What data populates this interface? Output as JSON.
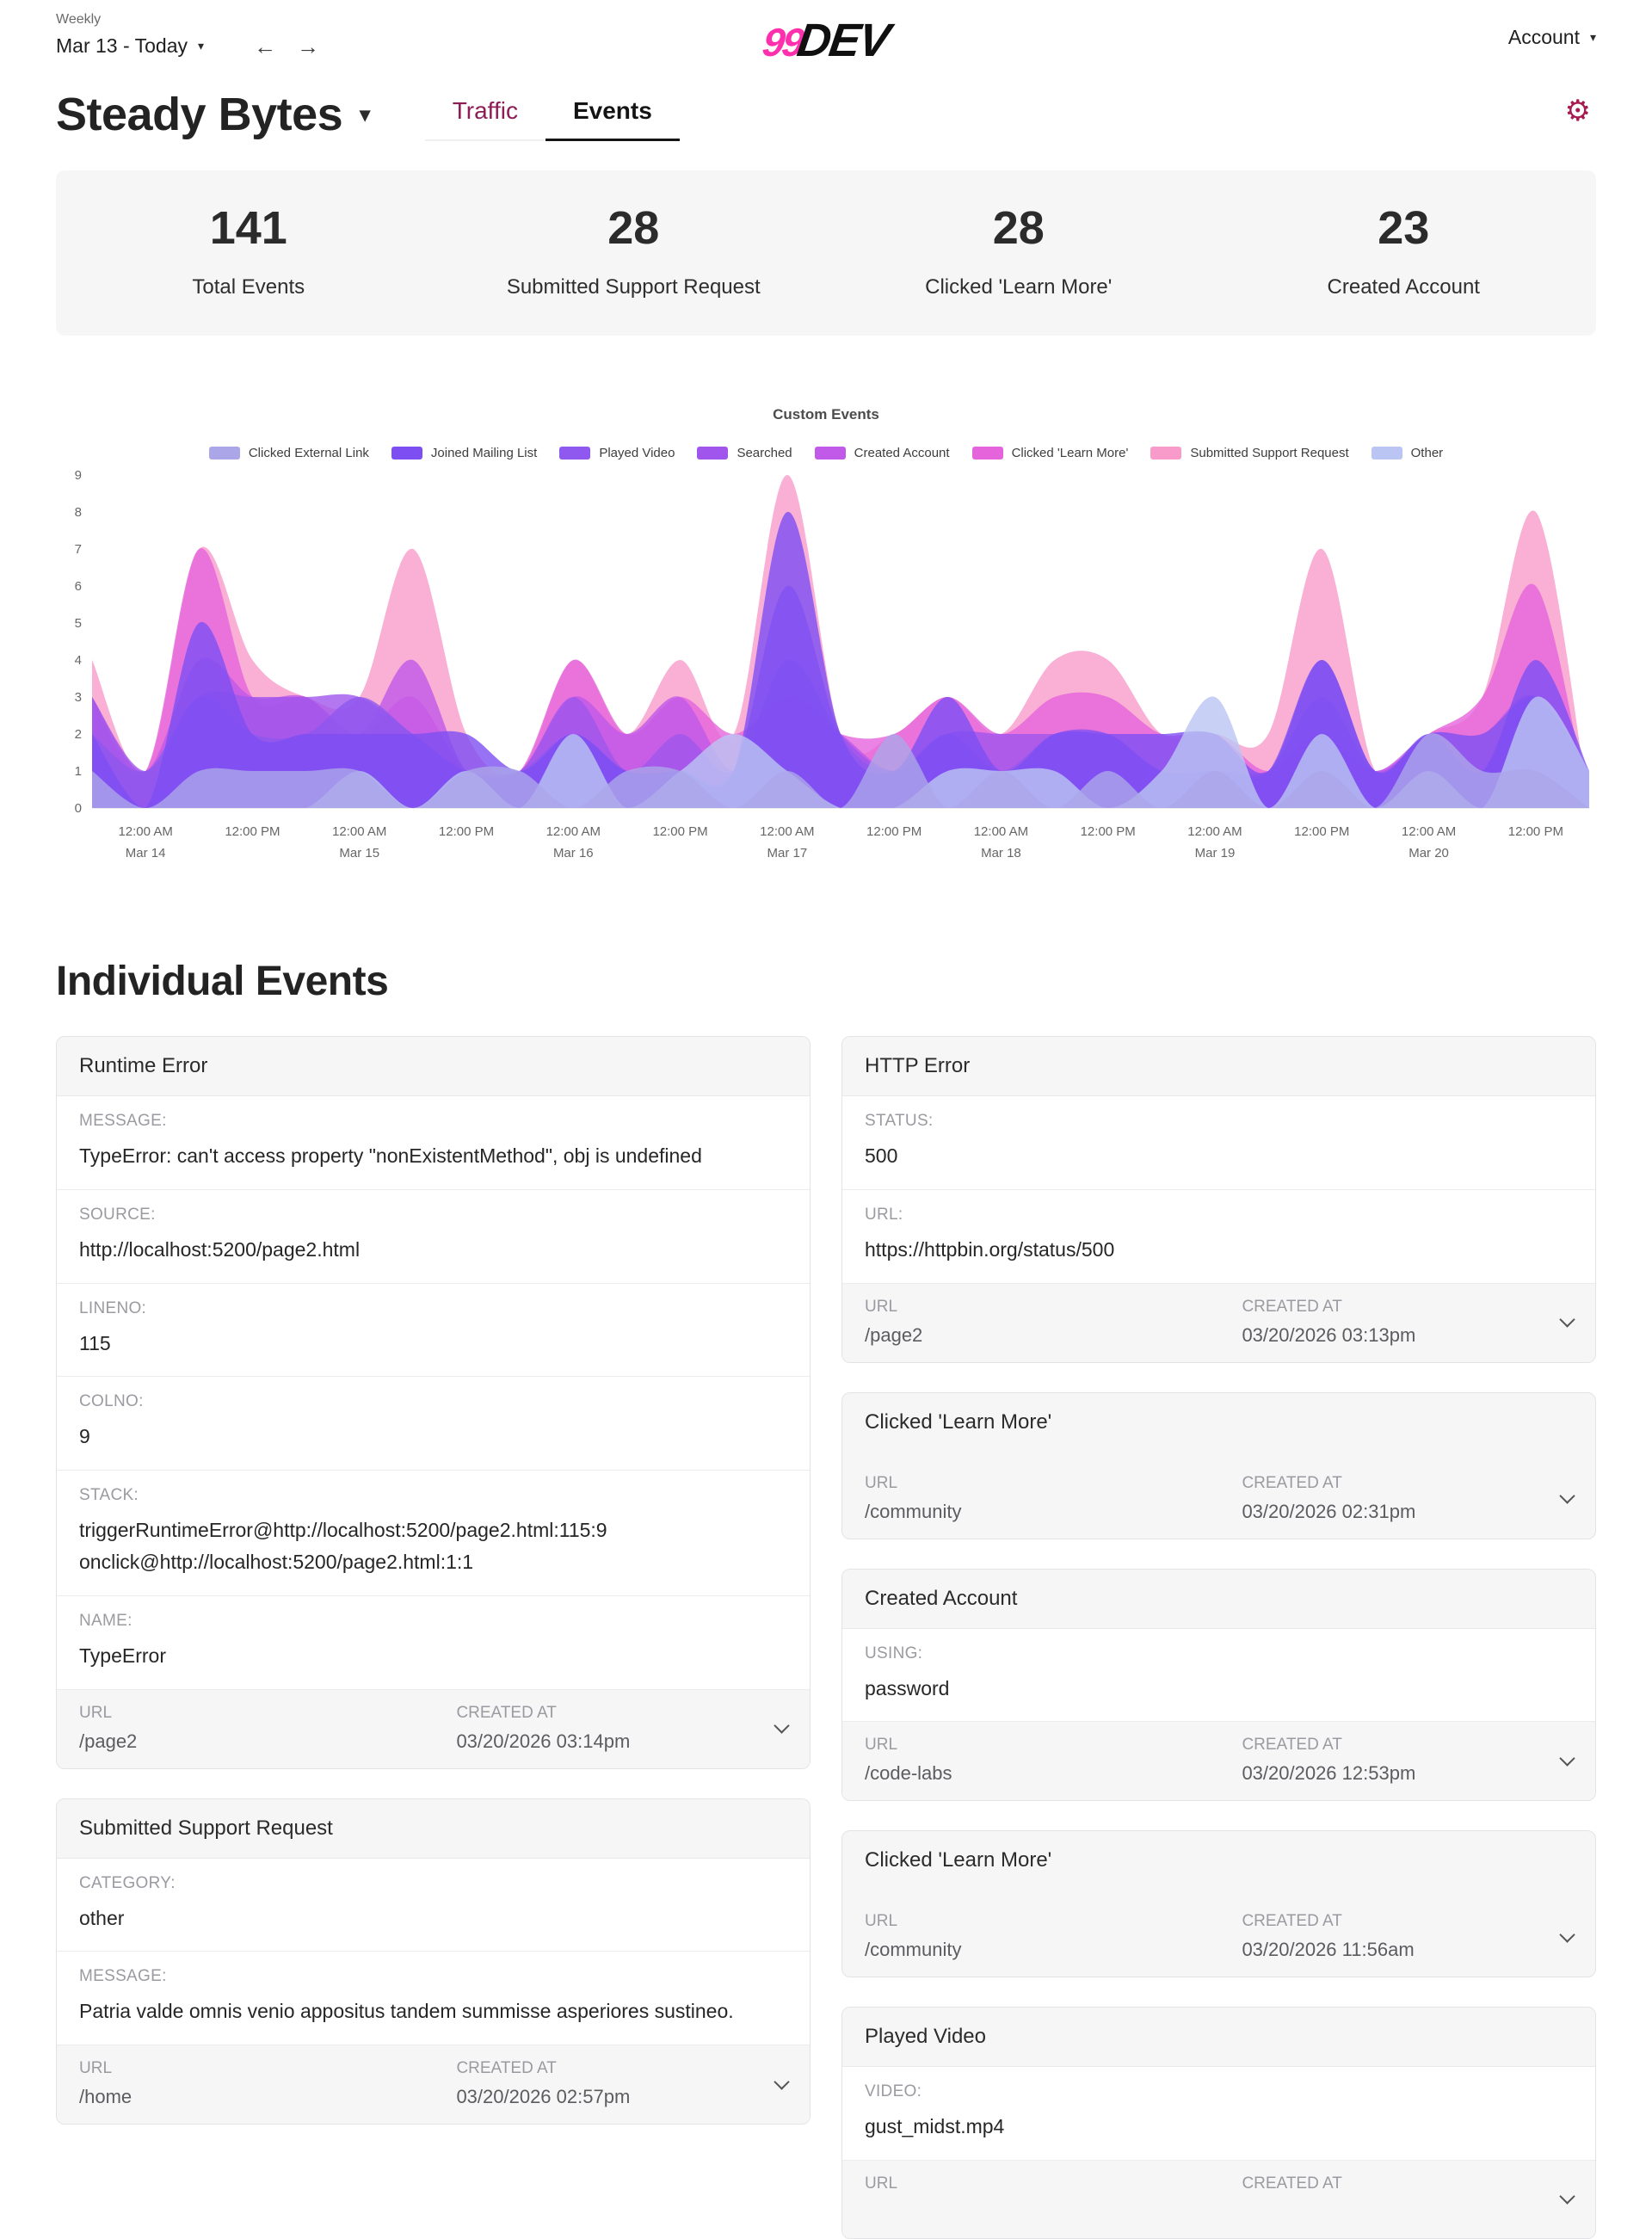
{
  "colors": {
    "accent_link": "#8e1d55",
    "accent_icon": "#a81a52",
    "logo_pink": "#ff2fae",
    "card_bg": "#f6f6f7",
    "border": "#e3e3e5"
  },
  "icons": {
    "gear": "⚙",
    "caret_down": "▾",
    "arrow_left": "←",
    "arrow_right": "→"
  },
  "header": {
    "period_label": "Weekly",
    "date_range": "Mar 13 - Today",
    "logo_prefix": "99",
    "logo_word": "DEV",
    "account_label": "Account"
  },
  "toolbar": {
    "site_name": "Steady Bytes",
    "tab_traffic": "Traffic",
    "tab_events": "Events"
  },
  "stats": [
    {
      "value": "141",
      "label": "Total Events"
    },
    {
      "value": "28",
      "label": "Submitted Support Request"
    },
    {
      "value": "28",
      "label": "Clicked 'Learn More'"
    },
    {
      "value": "23",
      "label": "Created Account"
    }
  ],
  "chart_data": {
    "type": "area",
    "title": "Custom Events",
    "ylim": [
      0,
      9
    ],
    "y_ticks": [
      0,
      1,
      2,
      3,
      4,
      5,
      6,
      7,
      8,
      9
    ],
    "x_start": "Mar 13 6:00 PM",
    "x_step_hours": 6,
    "grid": false,
    "legend_position": "top",
    "fill_alpha": 0.8,
    "x_ticks": [
      {
        "time": "12:00 AM",
        "date": "Mar 14"
      },
      {
        "time": "12:00 PM",
        "date": ""
      },
      {
        "time": "12:00 AM",
        "date": "Mar 15"
      },
      {
        "time": "12:00 PM",
        "date": ""
      },
      {
        "time": "12:00 AM",
        "date": "Mar 16"
      },
      {
        "time": "12:00 PM",
        "date": ""
      },
      {
        "time": "12:00 AM",
        "date": "Mar 17"
      },
      {
        "time": "12:00 PM",
        "date": ""
      },
      {
        "time": "12:00 AM",
        "date": "Mar 18"
      },
      {
        "time": "12:00 PM",
        "date": ""
      },
      {
        "time": "12:00 AM",
        "date": "Mar 19"
      },
      {
        "time": "12:00 PM",
        "date": ""
      },
      {
        "time": "12:00 AM",
        "date": "Mar 20"
      },
      {
        "time": "12:00 PM",
        "date": ""
      }
    ],
    "series": [
      {
        "name": "Clicked External Link",
        "color": "#aba6e8",
        "values": [
          1,
          0,
          1,
          1,
          1,
          1,
          0,
          1,
          1,
          0,
          1,
          1,
          0,
          1,
          0,
          2,
          0,
          1,
          0,
          1,
          0,
          1,
          0,
          1,
          0,
          2,
          1,
          1,
          0
        ]
      },
      {
        "name": "Joined Mailing List",
        "color": "#7d4ff2",
        "values": [
          2,
          0,
          5,
          2,
          2,
          2,
          2,
          2,
          1,
          2,
          1,
          1,
          1,
          8,
          2,
          1,
          3,
          1,
          2,
          2,
          2,
          2,
          1,
          4,
          1,
          2,
          1,
          4,
          1
        ]
      },
      {
        "name": "Played Video",
        "color": "#8f58ef",
        "values": [
          2,
          1,
          3,
          2,
          2,
          3,
          2,
          1,
          1,
          2,
          1,
          1,
          1,
          6,
          2,
          1,
          2,
          1,
          2,
          2,
          1,
          1,
          1,
          4,
          1,
          2,
          2,
          3,
          1
        ]
      },
      {
        "name": "Searched",
        "color": "#a055ec",
        "values": [
          3,
          1,
          3,
          3,
          3,
          3,
          2,
          1,
          1,
          3,
          1,
          2,
          1,
          4,
          2,
          1,
          2,
          2,
          2,
          2,
          1,
          1,
          1,
          3,
          1,
          2,
          2,
          3,
          1
        ]
      },
      {
        "name": "Created Account",
        "color": "#c159e9",
        "values": [
          3,
          1,
          4,
          3,
          3,
          2,
          4,
          1,
          1,
          3,
          2,
          3,
          1,
          3,
          2,
          1,
          2,
          1,
          2,
          2,
          1,
          1,
          1,
          2,
          1,
          2,
          2,
          3,
          0
        ]
      },
      {
        "name": "Clicked 'Learn More'",
        "color": "#e564dc",
        "values": [
          3,
          1,
          7,
          3,
          3,
          2,
          3,
          1,
          1,
          4,
          2,
          3,
          2,
          3,
          2,
          2,
          3,
          2,
          3,
          3,
          2,
          2,
          1,
          2,
          1,
          2,
          3,
          6,
          0
        ]
      },
      {
        "name": "Submitted Support Request",
        "color": "#f99bca",
        "values": [
          4,
          1,
          7,
          4,
          3,
          3,
          7,
          2,
          1,
          4,
          2,
          4,
          2,
          9,
          2,
          2,
          3,
          2,
          4,
          4,
          2,
          2,
          2,
          7,
          1,
          2,
          3,
          8,
          0
        ]
      },
      {
        "name": "Other",
        "color": "#bac5f3",
        "values": [
          0,
          0,
          0,
          0,
          0,
          1,
          0,
          1,
          0,
          2,
          0,
          1,
          2,
          1,
          0,
          0,
          1,
          1,
          1,
          0,
          1,
          3,
          0,
          2,
          0,
          1,
          0,
          3,
          1
        ]
      }
    ],
    "draw_order": [
      "Submitted Support Request",
      "Clicked 'Learn More'",
      "Created Account",
      "Searched",
      "Played Video",
      "Joined Mailing List",
      "Other",
      "Clicked External Link"
    ]
  },
  "events_section": {
    "heading": "Individual Events",
    "footer_labels": {
      "url": "URL",
      "created": "CREATED AT"
    },
    "columns": {
      "left": [
        {
          "title": "Runtime Error",
          "fields": [
            {
              "label": "MESSAGE:",
              "value": "TypeError: can't access property \"nonExistentMethod\", obj is undefined"
            },
            {
              "label": "SOURCE:",
              "value": "http://localhost:5200/page2.html"
            },
            {
              "label": "LINENO:",
              "value": "115"
            },
            {
              "label": "COLNO:",
              "value": "9"
            },
            {
              "label": "STACK:",
              "value": "triggerRuntimeError@http://localhost:5200/page2.html:115:9\nonclick@http://localhost:5200/page2.html:1:1"
            },
            {
              "label": "NAME:",
              "value": "TypeError"
            }
          ],
          "footer": {
            "url": "/page2",
            "created": "03/20/2026 03:14pm"
          }
        },
        {
          "title": "Submitted Support Request",
          "fields": [
            {
              "label": "CATEGORY:",
              "value": "other"
            },
            {
              "label": "MESSAGE:",
              "value": "Patria valde omnis venio appositus tandem summisse asperiores sustineo."
            }
          ],
          "footer": {
            "url": "/home",
            "created": "03/20/2026 02:57pm"
          }
        }
      ],
      "right": [
        {
          "title": "HTTP Error",
          "fields": [
            {
              "label": "STATUS:",
              "value": "500"
            },
            {
              "label": "URL:",
              "value": "https://httpbin.org/status/500"
            }
          ],
          "footer": {
            "url": "/page2",
            "created": "03/20/2026 03:13pm"
          }
        },
        {
          "title": "Clicked 'Learn More'",
          "fields": [],
          "footer": {
            "url": "/community",
            "created": "03/20/2026 02:31pm"
          }
        },
        {
          "title": "Created Account",
          "fields": [
            {
              "label": "USING:",
              "value": "password"
            }
          ],
          "footer": {
            "url": "/code-labs",
            "created": "03/20/2026 12:53pm"
          }
        },
        {
          "title": "Clicked 'Learn More'",
          "fields": [],
          "footer": {
            "url": "/community",
            "created": "03/20/2026 11:56am"
          }
        },
        {
          "title": "Played Video",
          "fields": [
            {
              "label": "VIDEO:",
              "value": "gust_midst.mp4"
            }
          ],
          "footer": {
            "url": "",
            "created": ""
          }
        }
      ]
    }
  }
}
